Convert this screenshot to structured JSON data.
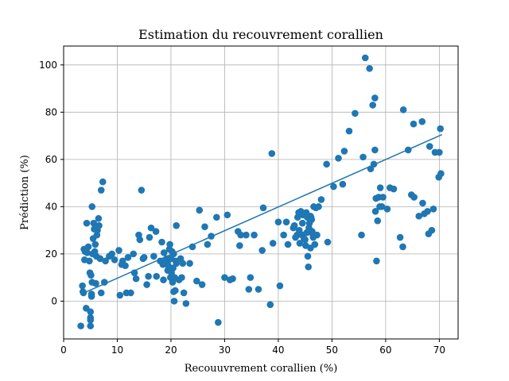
{
  "chart_data": {
    "type": "scatter",
    "title": "Estimation du recouvrement corallien",
    "xlabel": "Recouuvrement corallien (%)",
    "ylabel": "Prédiction (%)",
    "xlim": [
      0,
      73.5
    ],
    "ylim": [
      -16,
      108
    ],
    "xticks": [
      0,
      10,
      20,
      30,
      40,
      50,
      60,
      70
    ],
    "yticks": [
      0,
      20,
      40,
      60,
      80,
      100
    ],
    "grid": true,
    "colors": {
      "points": "#1f77b4",
      "line": "#1f77b4",
      "grid": "#b0b0b0",
      "axes": "#000000"
    },
    "trend_line": {
      "x": [
        3.5,
        70.5
      ],
      "y": [
        3.2,
        70.5
      ]
    },
    "series": [
      {
        "points": [
          [
            3.2,
            -10.5
          ],
          [
            3.5,
            6.5
          ],
          [
            3.6,
            4
          ],
          [
            3.7,
            3.5
          ],
          [
            3.8,
            22
          ],
          [
            3.9,
            17.5
          ],
          [
            4,
            21
          ],
          [
            4.2,
            -3
          ],
          [
            4.3,
            33
          ],
          [
            4.4,
            20.5
          ],
          [
            4.6,
            23
          ],
          [
            4.8,
            17
          ],
          [
            4.9,
            12
          ],
          [
            5,
            -4.5
          ],
          [
            5,
            -7
          ],
          [
            5,
            -8
          ],
          [
            5,
            -10.5
          ],
          [
            5.1,
            11
          ],
          [
            5.2,
            2
          ],
          [
            5.2,
            3
          ],
          [
            5.3,
            8
          ],
          [
            5.3,
            40
          ],
          [
            5.4,
            20
          ],
          [
            5.5,
            26.5
          ],
          [
            5.6,
            33
          ],
          [
            5.7,
            30.5
          ],
          [
            5.8,
            21
          ],
          [
            5.9,
            24
          ],
          [
            6,
            7.5
          ],
          [
            6.1,
            19
          ],
          [
            6.2,
            28
          ],
          [
            6.3,
            30
          ],
          [
            6.5,
            35
          ],
          [
            6.6,
            32
          ],
          [
            6.8,
            18
          ],
          [
            7,
            3.5
          ],
          [
            7,
            47
          ],
          [
            7.3,
            50.5
          ],
          [
            7.6,
            8
          ],
          [
            7.8,
            17
          ],
          [
            8.5,
            19
          ],
          [
            9,
            20
          ],
          [
            9.5,
            17.5
          ],
          [
            10.3,
            21.5
          ],
          [
            10.5,
            2.5
          ],
          [
            10.8,
            15.5
          ],
          [
            11,
            17
          ],
          [
            11.5,
            15
          ],
          [
            11.7,
            3.5
          ],
          [
            12,
            18.5
          ],
          [
            12.5,
            3.5
          ],
          [
            13,
            20
          ],
          [
            13.2,
            12
          ],
          [
            13.5,
            9.5
          ],
          [
            14,
            28
          ],
          [
            14.2,
            26
          ],
          [
            14.5,
            47
          ],
          [
            14.8,
            18
          ],
          [
            15,
            18.5
          ],
          [
            15.5,
            7
          ],
          [
            15.8,
            10.5
          ],
          [
            16,
            27
          ],
          [
            16.3,
            31
          ],
          [
            16.8,
            19
          ],
          [
            17.2,
            29.5
          ],
          [
            17.3,
            10.5
          ],
          [
            18,
            17
          ],
          [
            18.3,
            25
          ],
          [
            18.5,
            15.5
          ],
          [
            18.6,
            9
          ],
          [
            18.7,
            20.5
          ],
          [
            18.9,
            16
          ],
          [
            19,
            17
          ],
          [
            19.2,
            18
          ],
          [
            19.4,
            13
          ],
          [
            19.5,
            15
          ],
          [
            19.6,
            17.5
          ],
          [
            19.7,
            22
          ],
          [
            19.8,
            24
          ],
          [
            19.9,
            10
          ],
          [
            20,
            18
          ],
          [
            20.1,
            12
          ],
          [
            20.2,
            21
          ],
          [
            20.3,
            8
          ],
          [
            20.4,
            14
          ],
          [
            20.5,
            4
          ],
          [
            20.5,
            20
          ],
          [
            20.6,
            0
          ],
          [
            20.7,
            10
          ],
          [
            20.8,
            4.5
          ],
          [
            20.9,
            17
          ],
          [
            21,
            16
          ],
          [
            21,
            32
          ],
          [
            21.5,
            9
          ],
          [
            21.8,
            18
          ],
          [
            22,
            10
          ],
          [
            22.2,
            16
          ],
          [
            22.4,
            3.5
          ],
          [
            22.8,
            -1
          ],
          [
            23.5,
            16
          ],
          [
            24,
            23
          ],
          [
            24.8,
            8.5
          ],
          [
            25.3,
            38.5
          ],
          [
            25.8,
            7
          ],
          [
            26.3,
            31.5
          ],
          [
            26.8,
            24
          ],
          [
            27.5,
            27.5
          ],
          [
            28.5,
            35.5
          ],
          [
            28.8,
            -9
          ],
          [
            30,
            10
          ],
          [
            30.5,
            36.5
          ],
          [
            31,
            9
          ],
          [
            31.5,
            9.5
          ],
          [
            32.5,
            29.5
          ],
          [
            32.8,
            23.5
          ],
          [
            33,
            28
          ],
          [
            34,
            28
          ],
          [
            34.5,
            5
          ],
          [
            34.8,
            10
          ],
          [
            35.5,
            28
          ],
          [
            36.3,
            5
          ],
          [
            37,
            21.5
          ],
          [
            37.2,
            39.5
          ],
          [
            38.5,
            -1.5
          ],
          [
            38.8,
            62.5
          ],
          [
            39,
            24.5
          ],
          [
            40,
            33.5
          ],
          [
            40.3,
            6.5
          ],
          [
            41,
            28
          ],
          [
            41.5,
            33.5
          ],
          [
            41.8,
            24
          ],
          [
            42.8,
            31
          ],
          [
            43,
            32
          ],
          [
            43.2,
            27
          ],
          [
            43.5,
            28
          ],
          [
            43.6,
            35.5
          ],
          [
            43.8,
            37.5
          ],
          [
            43.9,
            30
          ],
          [
            44,
            24.5
          ],
          [
            44.2,
            38
          ],
          [
            44.4,
            28
          ],
          [
            44.5,
            33
          ],
          [
            44.6,
            36.5
          ],
          [
            44.8,
            26.5
          ],
          [
            45,
            26
          ],
          [
            45.1,
            23.5
          ],
          [
            45.2,
            37.5
          ],
          [
            45.3,
            29
          ],
          [
            45.4,
            35.5
          ],
          [
            45.5,
            19
          ],
          [
            45.6,
            14.5
          ],
          [
            45.7,
            31
          ],
          [
            45.8,
            33
          ],
          [
            45.9,
            30
          ],
          [
            46,
            22.5
          ],
          [
            46,
            36
          ],
          [
            46.1,
            35.5
          ],
          [
            46.2,
            34.5
          ],
          [
            46.3,
            29.5
          ],
          [
            46.4,
            28.5
          ],
          [
            46.5,
            27
          ],
          [
            46.6,
            40
          ],
          [
            46.8,
            24
          ],
          [
            47,
            39.5
          ],
          [
            47.2,
            28
          ],
          [
            47.5,
            40
          ],
          [
            48,
            43
          ],
          [
            49,
            58
          ],
          [
            49.2,
            25
          ],
          [
            50.3,
            48.5
          ],
          [
            51.2,
            60.5
          ],
          [
            52,
            49.5
          ],
          [
            52.3,
            63.5
          ],
          [
            53.2,
            72
          ],
          [
            54.3,
            79.5
          ],
          [
            55.5,
            28
          ],
          [
            55.8,
            61
          ],
          [
            56.2,
            103
          ],
          [
            57,
            98.5
          ],
          [
            57.2,
            56
          ],
          [
            57.6,
            83
          ],
          [
            57.8,
            58
          ],
          [
            58,
            86
          ],
          [
            58,
            64
          ],
          [
            58.1,
            38
          ],
          [
            58.2,
            43.5
          ],
          [
            58.3,
            17
          ],
          [
            58.5,
            34
          ],
          [
            58.7,
            44
          ],
          [
            58.9,
            40
          ],
          [
            59,
            48
          ],
          [
            59.3,
            40
          ],
          [
            59.5,
            44
          ],
          [
            60.3,
            39
          ],
          [
            60.8,
            48
          ],
          [
            61.5,
            47.5
          ],
          [
            62.7,
            27
          ],
          [
            63.2,
            23
          ],
          [
            63.3,
            81
          ],
          [
            64.2,
            64
          ],
          [
            64.8,
            45
          ],
          [
            65.2,
            75
          ],
          [
            65.3,
            44
          ],
          [
            66.2,
            36
          ],
          [
            66.8,
            76
          ],
          [
            66.9,
            41.5
          ],
          [
            67.2,
            37
          ],
          [
            67.8,
            38
          ],
          [
            68,
            28.5
          ],
          [
            68.2,
            65.5
          ],
          [
            68.6,
            30
          ],
          [
            68.9,
            39
          ],
          [
            69.2,
            63
          ],
          [
            69.9,
            52.5
          ],
          [
            70,
            63
          ],
          [
            70.2,
            73
          ],
          [
            70.3,
            54
          ]
        ]
      }
    ]
  }
}
